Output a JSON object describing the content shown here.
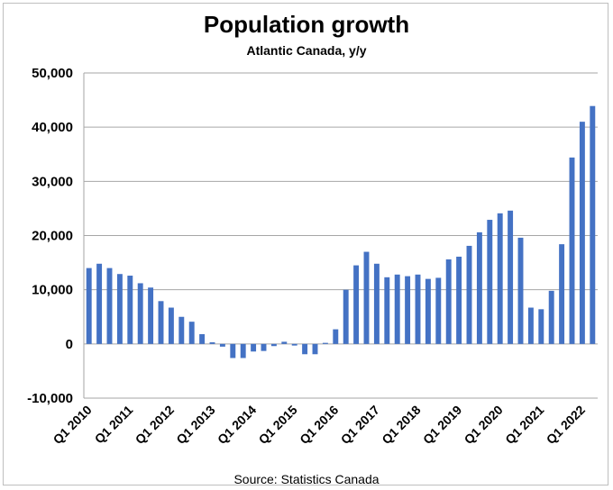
{
  "chart_data": {
    "type": "bar",
    "title": "Population growth",
    "subtitle": "Atlantic Canada, y/y",
    "source": "Source: Statistics Canada",
    "xlabel": "",
    "ylabel": "",
    "ylim": [
      -10000,
      50000
    ],
    "y_ticks": [
      -10000,
      0,
      10000,
      20000,
      30000,
      40000,
      50000
    ],
    "y_tick_labels": [
      "-10,000",
      "0",
      "10,000",
      "20,000",
      "30,000",
      "40,000",
      "50,000"
    ],
    "grid": true,
    "legend": "none",
    "bar_color": "#4472c4",
    "x_tick_labels": [
      "Q1 2010",
      "Q1 2011",
      "Q1 2012",
      "Q1 2013",
      "Q1 2014",
      "Q1 2015",
      "Q1 2016",
      "Q1 2017",
      "Q1 2018",
      "Q1 2019",
      "Q1 2020",
      "Q1 2021",
      "Q1 2022"
    ],
    "categories": [
      "Q1 2010",
      "Q2 2010",
      "Q3 2010",
      "Q4 2010",
      "Q1 2011",
      "Q2 2011",
      "Q3 2011",
      "Q4 2011",
      "Q1 2012",
      "Q2 2012",
      "Q3 2012",
      "Q4 2012",
      "Q1 2013",
      "Q2 2013",
      "Q3 2013",
      "Q4 2013",
      "Q1 2014",
      "Q2 2014",
      "Q3 2014",
      "Q4 2014",
      "Q1 2015",
      "Q2 2015",
      "Q3 2015",
      "Q4 2015",
      "Q1 2016",
      "Q2 2016",
      "Q3 2016",
      "Q4 2016",
      "Q1 2017",
      "Q2 2017",
      "Q3 2017",
      "Q4 2017",
      "Q1 2018",
      "Q2 2018",
      "Q3 2018",
      "Q4 2018",
      "Q1 2019",
      "Q2 2019",
      "Q3 2019",
      "Q4 2019",
      "Q1 2020",
      "Q2 2020",
      "Q3 2020",
      "Q4 2020",
      "Q1 2021",
      "Q2 2021",
      "Q3 2021",
      "Q4 2021",
      "Q1 2022",
      "Q2 2022"
    ],
    "values": [
      14000,
      14800,
      14000,
      12900,
      12600,
      11200,
      10400,
      7900,
      6700,
      5000,
      4100,
      1800,
      300,
      -500,
      -2600,
      -2600,
      -1400,
      -1300,
      -400,
      400,
      -300,
      -1900,
      -1900,
      200,
      2700,
      10000,
      14500,
      17000,
      14800,
      12300,
      12800,
      12500,
      12800,
      12000,
      12200,
      15600,
      16100,
      18100,
      20600,
      22900,
      24100,
      24600,
      19600,
      6700,
      6400,
      9800,
      18400,
      34400,
      41000,
      43900
    ]
  }
}
